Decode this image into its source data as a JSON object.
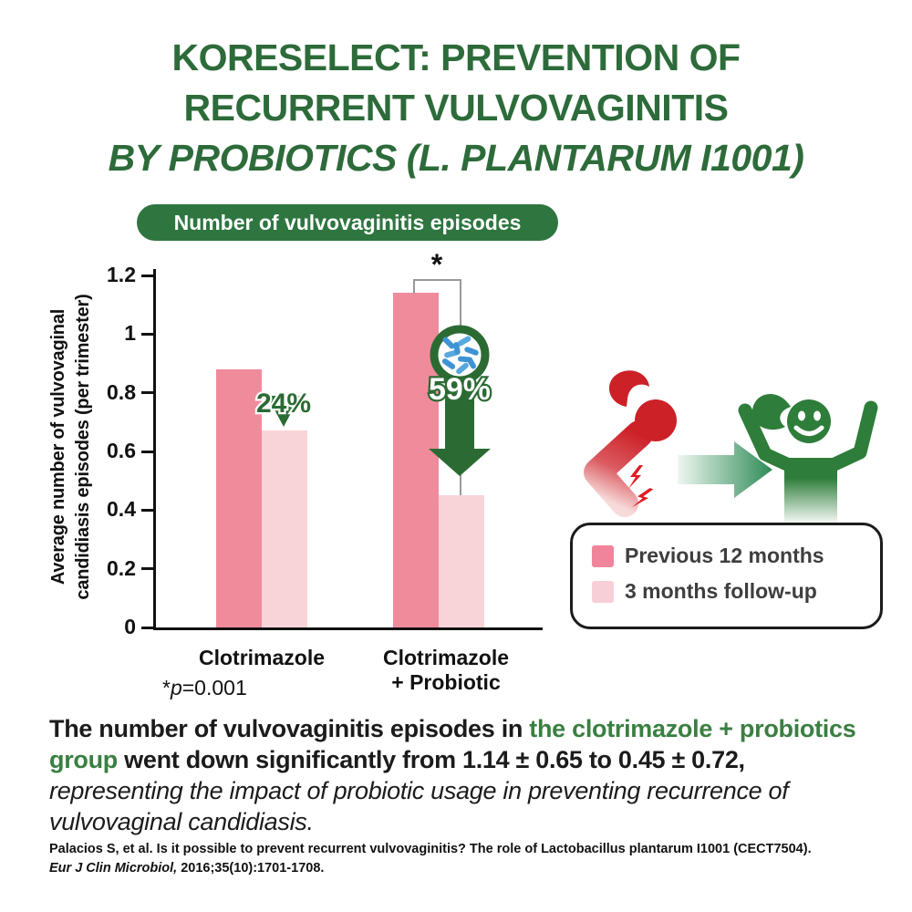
{
  "title": {
    "line1": "KORESELECT: PREVENTION OF",
    "line2": "RECURRENT VULVOVAGINITIS",
    "line3": "BY PROBIOTICS (L. PLANTARUM I1001)"
  },
  "badge": {
    "label": "Number of vulvovaginitis episodes"
  },
  "chart_data": {
    "type": "bar",
    "title": "Number of vulvovaginitis episodes",
    "ylabel": "Average number of vulvovaginal candidiasis episodes (per trimester)",
    "ylabel_lines": [
      "Average number of vulvovaginal",
      "candidiasis episodes (per trimester)"
    ],
    "categories": [
      "Clotrimazole",
      "Clotrimazole + Probiotic"
    ],
    "series": [
      {
        "name": "Previous 12 months",
        "color": "#F08B9C",
        "values": [
          0.88,
          1.14
        ]
      },
      {
        "name": "3 months follow-up",
        "color": "#F8D4D9",
        "values": [
          0.67,
          0.45
        ]
      }
    ],
    "ylim": [
      0,
      1.2
    ],
    "yticks": [
      "0",
      "0.2",
      "0.4",
      "0.6",
      "0.8",
      "1",
      "1.2"
    ],
    "grid": false,
    "legend_position": "right",
    "annotations": [
      {
        "group": "Clotrimazole",
        "reduction_label": "24%"
      },
      {
        "group": "Clotrimazole + Probiotic",
        "reduction_label": "59%",
        "significance": "*"
      }
    ],
    "p_value_note": "*p=0.001"
  },
  "xaxis": {
    "group1_label": "Clotrimazole",
    "group2_label_line1": "Clotrimazole",
    "group2_label_line2": "+ Probiotic"
  },
  "pvalue": {
    "star": "*",
    "p": "p",
    "rest": "=0.001"
  },
  "legend": {
    "items": [
      {
        "label": "Previous 12 months",
        "color": "#F0849B"
      },
      {
        "label": "3 months follow-up",
        "color": "#F7CFD6"
      }
    ]
  },
  "summary": {
    "seg1": "The number of vulvovaginitis episodes in ",
    "seg2_green": "the clotrimazole + probiotics group",
    "seg3": " went down significantly from 1.14 ± 0.65 to 0.45 ± 0.72,",
    "seg4_italic": "representing the impact of probiotic usage in preventing recurrence of vulvovaginal candidiasis."
  },
  "citation": {
    "line1": "Palacios S, et al. Is it possible to prevent recurrent vulvovaginitis? The role of Lactobacillus plantarum I1001 (CECT7504).",
    "line2_journal": "Eur J Clin Microbiol,",
    "line2_rest": " 2016;35(10):1701-1708."
  },
  "colors": {
    "title_green": "#2D6B3A",
    "badge_green": "#2E7540",
    "dark_green": "#2B6B33",
    "text_green": "#3A7F42",
    "bar_dark_pink": "#F08B9C",
    "bar_light_pink": "#F8D4D9",
    "bacteria_blue": "#3E93D4",
    "figure_red": "#CC2127",
    "figure_green": "#2E7D3A",
    "transition_arrow_green": "#2E8B57",
    "bracket_gray": "#999999"
  }
}
